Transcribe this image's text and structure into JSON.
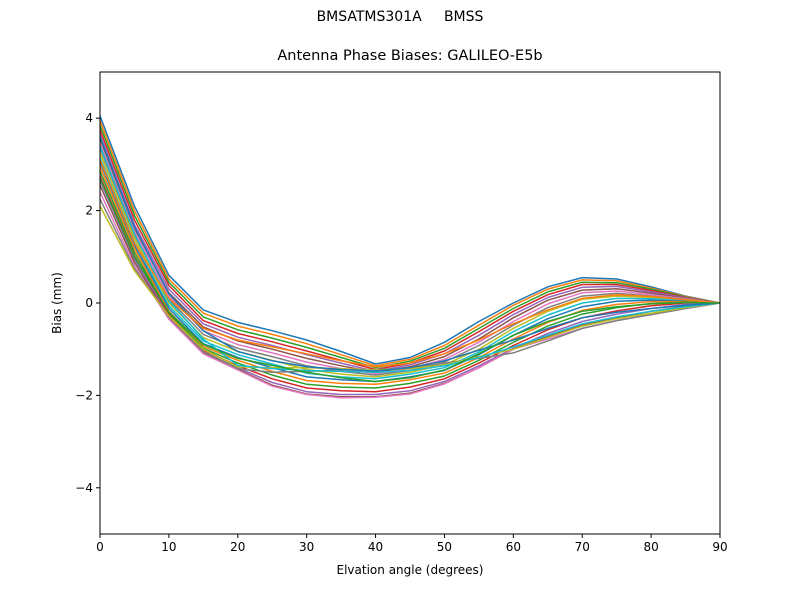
{
  "suptitle": "BMSATMS301A     BMSS",
  "chart_data": {
    "type": "line",
    "title": "Antenna Phase Biases: GALILEO-E5b",
    "xlabel": "Elvation angle (degrees)",
    "ylabel": "Bias (mm)",
    "xlim": [
      0,
      90
    ],
    "ylim": [
      -5,
      5
    ],
    "xticks": [
      0,
      10,
      20,
      30,
      40,
      50,
      60,
      70,
      80,
      90
    ],
    "yticks": [
      -4,
      -2,
      0,
      2,
      4
    ],
    "grid": false,
    "legend": "none",
    "x": [
      0,
      5,
      10,
      15,
      20,
      25,
      30,
      35,
      40,
      45,
      50,
      55,
      60,
      65,
      70,
      75,
      80,
      85,
      90
    ],
    "series_envelope": {
      "upper": [
        4.05,
        2.1,
        0.6,
        -0.15,
        -0.42,
        -0.6,
        -0.8,
        -1.05,
        -1.32,
        -1.18,
        -0.85,
        -0.4,
        0.0,
        0.35,
        0.55,
        0.52,
        0.35,
        0.15,
        0.0
      ],
      "lower": [
        2.05,
        0.7,
        -0.35,
        -1.1,
        -1.45,
        -1.8,
        -1.98,
        -2.05,
        -2.04,
        -1.97,
        -1.75,
        -1.4,
        -1.0,
        -0.78,
        -0.55,
        -0.38,
        -0.25,
        -0.12,
        0.0
      ],
      "note_count": 60
    },
    "series": [
      {
        "values": [
          4.05,
          2.1,
          0.6,
          -0.15,
          -0.42,
          -0.6,
          -0.8,
          -1.05,
          -1.32,
          -1.18,
          -0.85,
          -0.4,
          0.0,
          0.35,
          0.55,
          0.52,
          0.35,
          0.15,
          0.0
        ]
      },
      {
        "values": [
          3.95,
          2.0,
          0.52,
          -0.22,
          -0.5,
          -0.68,
          -0.88,
          -1.12,
          -1.36,
          -1.22,
          -0.92,
          -0.48,
          -0.05,
          0.3,
          0.5,
          0.48,
          0.32,
          0.14,
          0.0
        ]
      },
      {
        "values": [
          3.85,
          1.9,
          0.45,
          -0.3,
          -0.58,
          -0.76,
          -0.96,
          -1.18,
          -1.4,
          -1.26,
          -0.98,
          -0.55,
          -0.12,
          0.24,
          0.45,
          0.44,
          0.3,
          0.13,
          0.0
        ]
      },
      {
        "values": [
          3.75,
          1.8,
          0.38,
          -0.38,
          -0.66,
          -0.84,
          -1.04,
          -1.24,
          -1.44,
          -1.3,
          -1.04,
          -0.62,
          -0.18,
          0.18,
          0.4,
          0.4,
          0.27,
          0.12,
          0.0
        ]
      },
      {
        "values": [
          3.65,
          1.7,
          0.3,
          -0.45,
          -0.74,
          -0.92,
          -1.12,
          -1.3,
          -1.48,
          -1.34,
          -1.1,
          -0.7,
          -0.25,
          0.12,
          0.34,
          0.36,
          0.24,
          0.11,
          0.0
        ]
      },
      {
        "values": [
          3.55,
          1.62,
          0.22,
          -0.52,
          -0.82,
          -1.0,
          -1.2,
          -1.36,
          -1.5,
          -1.38,
          -1.16,
          -0.78,
          -0.32,
          0.06,
          0.28,
          0.31,
          0.21,
          0.1,
          0.0
        ]
      },
      {
        "values": [
          3.45,
          1.55,
          0.15,
          -0.6,
          -0.9,
          -1.08,
          -1.28,
          -1.42,
          -1.53,
          -1.42,
          -1.22,
          -0.85,
          -0.4,
          -0.02,
          0.22,
          0.26,
          0.18,
          0.09,
          0.0
        ]
      },
      {
        "values": [
          3.35,
          1.47,
          0.08,
          -0.68,
          -0.98,
          -1.16,
          -1.36,
          -1.48,
          -1.56,
          -1.46,
          -1.28,
          -0.92,
          -0.48,
          -0.1,
          0.15,
          0.21,
          0.15,
          0.08,
          0.0
        ]
      },
      {
        "values": [
          3.25,
          1.4,
          0.0,
          -0.75,
          -1.05,
          -1.24,
          -1.44,
          -1.54,
          -1.6,
          -1.5,
          -1.34,
          -1.0,
          -0.55,
          -0.18,
          0.08,
          0.15,
          0.12,
          0.07,
          0.0
        ]
      },
      {
        "values": [
          3.15,
          1.32,
          -0.06,
          -0.82,
          -1.12,
          -1.32,
          -1.52,
          -1.6,
          -1.64,
          -1.54,
          -1.4,
          -1.06,
          -0.62,
          -0.26,
          0.0,
          0.1,
          0.09,
          0.05,
          0.0
        ]
      },
      {
        "values": [
          3.05,
          1.25,
          -0.12,
          -0.88,
          -1.18,
          -1.4,
          -1.6,
          -1.66,
          -1.7,
          -1.6,
          -1.46,
          -1.12,
          -0.7,
          -0.34,
          -0.08,
          0.04,
          0.06,
          0.04,
          0.0
        ]
      },
      {
        "values": [
          2.95,
          1.18,
          -0.18,
          -0.94,
          -1.24,
          -1.48,
          -1.68,
          -1.74,
          -1.76,
          -1.66,
          -1.52,
          -1.18,
          -0.78,
          -0.42,
          -0.16,
          -0.03,
          0.03,
          0.03,
          0.0
        ]
      },
      {
        "values": [
          2.85,
          1.1,
          -0.22,
          -0.98,
          -1.3,
          -1.56,
          -1.76,
          -1.82,
          -1.84,
          -1.74,
          -1.58,
          -1.24,
          -0.85,
          -0.5,
          -0.24,
          -0.1,
          -0.01,
          0.02,
          0.0
        ]
      },
      {
        "values": [
          2.75,
          1.02,
          -0.26,
          -1.02,
          -1.36,
          -1.64,
          -1.84,
          -1.9,
          -1.92,
          -1.82,
          -1.64,
          -1.3,
          -0.92,
          -0.58,
          -0.32,
          -0.17,
          -0.06,
          0.0,
          0.0
        ]
      },
      {
        "values": [
          2.65,
          0.95,
          -0.3,
          -1.06,
          -1.4,
          -1.72,
          -1.92,
          -1.98,
          -1.98,
          -1.9,
          -1.7,
          -1.36,
          -0.98,
          -0.66,
          -0.4,
          -0.24,
          -0.12,
          -0.03,
          0.0
        ]
      },
      {
        "values": [
          2.55,
          0.88,
          -0.33,
          -1.08,
          -1.43,
          -1.78,
          -1.97,
          -2.03,
          -2.03,
          -1.95,
          -1.74,
          -1.4,
          -1.0,
          -0.72,
          -0.48,
          -0.32,
          -0.18,
          -0.07,
          0.0
        ]
      },
      {
        "values": [
          2.4,
          0.8,
          -0.35,
          -1.1,
          -1.45,
          -1.8,
          -1.98,
          -2.05,
          -2.04,
          -1.97,
          -1.75,
          -1.4,
          -1.0,
          -0.78,
          -0.55,
          -0.38,
          -0.25,
          -0.12,
          0.0
        ]
      },
      {
        "values": [
          2.25,
          0.75,
          -0.3,
          -1.05,
          -1.42,
          -1.5,
          -1.48,
          -1.45,
          -1.44,
          -1.4,
          -1.3,
          -1.2,
          -1.08,
          -0.82,
          -0.55,
          -0.38,
          -0.25,
          -0.12,
          0.0
        ]
      },
      {
        "values": [
          2.1,
          0.7,
          -0.28,
          -1.0,
          -1.38,
          -1.4,
          -1.4,
          -1.42,
          -1.45,
          -1.42,
          -1.34,
          -1.16,
          -1.0,
          -0.75,
          -0.5,
          -0.34,
          -0.22,
          -0.1,
          0.0
        ]
      },
      {
        "values": [
          3.4,
          1.5,
          0.05,
          -0.78,
          -1.35,
          -1.42,
          -1.46,
          -1.48,
          -1.5,
          -1.46,
          -1.36,
          -1.18,
          -0.95,
          -0.7,
          -0.45,
          -0.3,
          -0.18,
          -0.08,
          0.0
        ]
      },
      {
        "values": [
          3.6,
          1.65,
          0.2,
          -0.6,
          -1.05,
          -1.25,
          -1.38,
          -1.44,
          -1.47,
          -1.4,
          -1.25,
          -1.02,
          -0.8,
          -0.55,
          -0.32,
          -0.2,
          -0.12,
          -0.05,
          0.0
        ]
      },
      {
        "values": [
          3.1,
          1.3,
          0.1,
          -0.55,
          -0.8,
          -0.95,
          -1.1,
          -1.25,
          -1.38,
          -1.3,
          -1.1,
          -0.8,
          -0.45,
          -0.15,
          0.1,
          0.18,
          0.14,
          0.07,
          0.0
        ]
      },
      {
        "values": [
          2.7,
          1.0,
          -0.2,
          -0.9,
          -1.2,
          -1.35,
          -1.5,
          -1.62,
          -1.7,
          -1.62,
          -1.45,
          -1.1,
          -0.7,
          -0.4,
          -0.18,
          -0.08,
          -0.02,
          0.01,
          0.0
        ]
      }
    ]
  },
  "colors": {
    "palette": [
      "#1f77b4",
      "#ff7f0e",
      "#2ca02c",
      "#d62728",
      "#9467bd",
      "#8c564b",
      "#e377c2",
      "#7f7f7f",
      "#bcbd22",
      "#17becf"
    ]
  }
}
